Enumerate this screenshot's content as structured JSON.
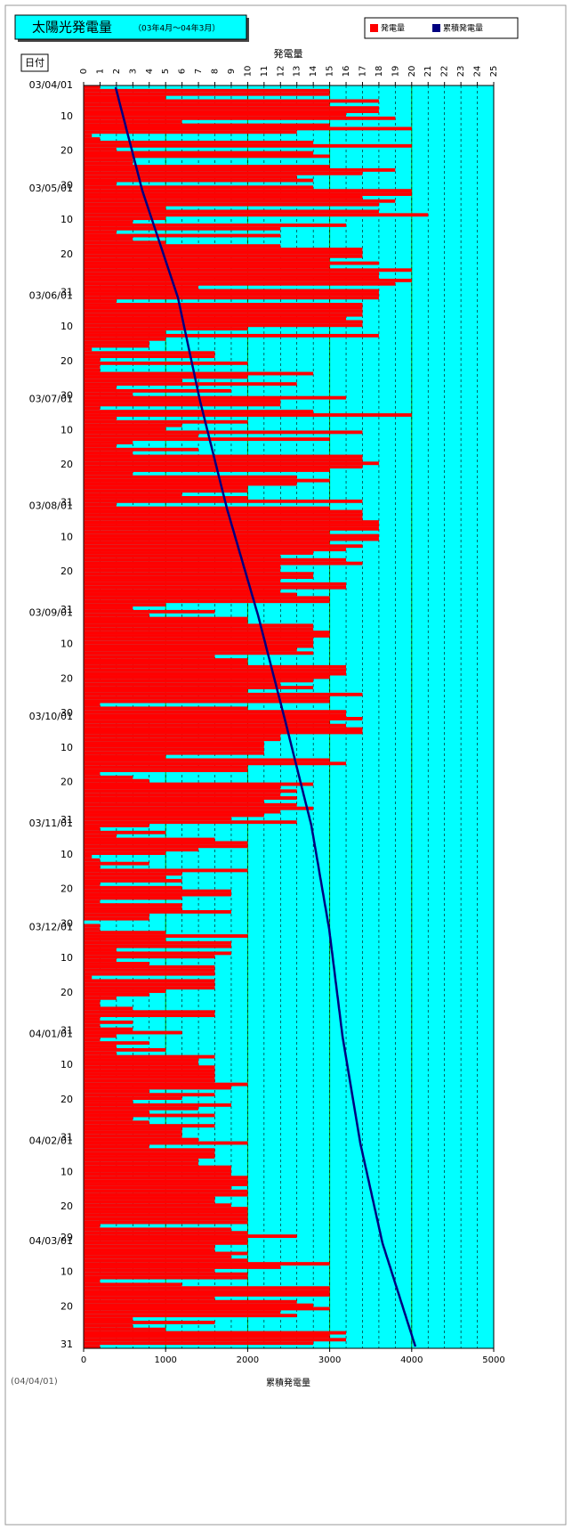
{
  "chart_data": {
    "type": "bar",
    "orientation": "horizontal",
    "title": "太陽光発電量",
    "subtitle": "（03年4月～04年3月）",
    "y_label": "日付",
    "x_label": "発電量",
    "x2_label": "累積発電量",
    "annotation": "(04/04/01)",
    "background": "#00ffff",
    "grid": true,
    "xlim": [
      0,
      25
    ],
    "xticks": [
      0,
      1,
      2,
      3,
      4,
      5,
      6,
      7,
      8,
      9,
      10,
      11,
      12,
      13,
      14,
      15,
      16,
      17,
      18,
      19,
      20,
      21,
      22,
      23,
      24,
      25
    ],
    "x2lim": [
      0,
      5000
    ],
    "x2ticks": [
      0,
      1000,
      2000,
      3000,
      4000,
      5000
    ],
    "categories": [
      "03/04/01",
      null,
      null,
      null,
      null,
      null,
      null,
      null,
      null,
      "10",
      null,
      null,
      null,
      null,
      null,
      null,
      null,
      null,
      null,
      "20",
      null,
      null,
      null,
      null,
      null,
      null,
      null,
      null,
      null,
      "30",
      "03/05/01",
      null,
      null,
      null,
      null,
      null,
      null,
      null,
      null,
      "10",
      null,
      null,
      null,
      null,
      null,
      null,
      null,
      null,
      null,
      "20",
      null,
      null,
      null,
      null,
      null,
      null,
      null,
      null,
      null,
      null,
      "31",
      "03/06/01",
      null,
      null,
      null,
      null,
      null,
      null,
      null,
      null,
      "10",
      null,
      null,
      null,
      null,
      null,
      null,
      null,
      null,
      null,
      "20",
      null,
      null,
      null,
      null,
      null,
      null,
      null,
      null,
      null,
      "30",
      "03/07/01",
      null,
      null,
      null,
      null,
      null,
      null,
      null,
      null,
      "10",
      null,
      null,
      null,
      null,
      null,
      null,
      null,
      null,
      null,
      "20",
      null,
      null,
      null,
      null,
      null,
      null,
      null,
      null,
      null,
      null,
      "31",
      "03/08/01",
      null,
      null,
      null,
      null,
      null,
      null,
      null,
      null,
      "10",
      null,
      null,
      null,
      null,
      null,
      null,
      null,
      null,
      null,
      "20",
      null,
      null,
      null,
      null,
      null,
      null,
      null,
      null,
      null,
      null,
      "31",
      "03/09/01",
      null,
      null,
      null,
      null,
      null,
      null,
      null,
      null,
      "10",
      null,
      null,
      null,
      null,
      null,
      null,
      null,
      null,
      null,
      "20",
      null,
      null,
      null,
      null,
      null,
      null,
      null,
      null,
      null,
      "30",
      "03/10/01",
      null,
      null,
      null,
      null,
      null,
      null,
      null,
      null,
      "10",
      null,
      null,
      null,
      null,
      null,
      null,
      null,
      null,
      null,
      "20",
      null,
      null,
      null,
      null,
      null,
      null,
      null,
      null,
      null,
      null,
      "31",
      "03/11/01",
      null,
      null,
      null,
      null,
      null,
      null,
      null,
      null,
      "10",
      null,
      null,
      null,
      null,
      null,
      null,
      null,
      null,
      null,
      "20",
      null,
      null,
      null,
      null,
      null,
      null,
      null,
      null,
      null,
      "30",
      "03/12/01",
      null,
      null,
      null,
      null,
      null,
      null,
      null,
      null,
      "10",
      null,
      null,
      null,
      null,
      null,
      null,
      null,
      null,
      null,
      "20",
      null,
      null,
      null,
      null,
      null,
      null,
      null,
      null,
      null,
      null,
      "31",
      "04/01/01",
      null,
      null,
      null,
      null,
      null,
      null,
      null,
      null,
      "10",
      null,
      null,
      null,
      null,
      null,
      null,
      null,
      null,
      null,
      "20",
      null,
      null,
      null,
      null,
      null,
      null,
      null,
      null,
      null,
      null,
      "31",
      "04/02/01",
      null,
      null,
      null,
      null,
      null,
      null,
      null,
      null,
      "10",
      null,
      null,
      null,
      null,
      null,
      null,
      null,
      null,
      null,
      "20",
      null,
      null,
      null,
      null,
      null,
      null,
      null,
      null,
      "29",
      "04/03/01",
      null,
      null,
      null,
      null,
      null,
      null,
      null,
      null,
      "10",
      null,
      null,
      null,
      null,
      null,
      null,
      null,
      null,
      null,
      "20",
      null,
      null,
      null,
      null,
      null,
      null,
      null,
      null,
      null,
      null,
      "31"
    ],
    "series": [
      {
        "name": "発電量",
        "color": "#ff0000",
        "values": [
          1,
          15,
          15,
          5,
          18,
          15,
          18,
          18,
          16,
          19,
          6,
          15,
          20,
          13,
          0.5,
          1,
          14,
          20,
          2,
          14,
          15,
          3,
          3,
          15,
          19,
          17,
          13,
          14,
          2,
          14,
          20,
          20,
          17,
          19,
          18,
          5,
          18,
          21,
          5,
          3,
          16,
          12,
          2,
          12,
          3,
          5,
          12,
          17,
          17,
          17,
          15,
          18,
          15,
          20,
          18,
          18,
          20,
          19,
          7,
          18,
          18,
          18,
          2,
          17,
          17,
          17,
          17,
          16,
          17,
          17,
          10,
          5,
          18,
          5,
          4,
          4,
          0.5,
          8,
          8,
          1,
          10,
          1,
          1,
          14,
          10,
          6,
          13,
          2,
          9,
          3,
          16,
          12,
          12,
          1,
          14,
          20,
          2,
          10,
          6,
          5,
          17,
          7,
          15,
          3,
          2,
          7,
          3,
          17,
          17,
          18,
          17,
          15,
          3,
          13,
          15,
          13,
          10,
          10,
          6,
          10,
          17,
          2,
          15,
          17,
          17,
          17,
          18,
          18,
          18,
          15,
          18,
          18,
          15,
          17,
          16,
          14,
          12,
          16,
          17,
          12,
          12,
          14,
          14,
          12,
          16,
          16,
          12,
          13,
          15,
          15,
          5,
          3,
          8,
          4,
          10,
          10,
          14,
          14,
          15,
          15,
          14,
          14,
          14,
          13,
          14,
          8,
          10,
          10,
          16,
          16,
          16,
          15,
          14,
          12,
          14,
          10,
          17,
          15,
          15,
          1,
          10,
          16,
          16,
          17,
          15,
          16,
          17,
          17,
          12,
          12,
          11,
          11,
          11,
          11,
          5,
          15,
          16,
          10,
          10,
          1,
          3,
          4,
          14,
          12,
          13,
          12,
          13,
          11,
          13,
          14,
          12,
          11,
          9,
          13,
          4,
          1,
          5,
          2,
          8,
          10,
          10,
          7,
          5,
          0.5,
          1,
          4,
          1,
          10,
          6,
          5,
          6,
          1,
          6,
          9,
          9,
          6,
          1,
          6,
          6,
          9,
          4,
          4,
          0,
          1,
          1,
          5,
          10,
          5,
          9,
          9,
          2,
          9,
          8,
          2,
          4,
          8,
          8,
          8,
          0.5,
          8,
          8,
          8,
          5,
          4,
          2,
          1,
          1,
          3,
          8,
          8,
          1,
          3,
          1,
          3,
          6,
          2,
          1,
          4,
          2,
          5,
          2,
          8,
          7,
          7,
          8,
          8,
          8,
          8,
          8,
          10,
          9,
          4,
          8,
          6,
          3,
          9,
          7,
          4,
          8,
          3,
          4,
          8,
          6,
          6,
          6,
          7,
          10,
          4,
          8,
          8,
          8,
          7,
          7,
          9,
          9,
          9,
          10,
          10,
          10,
          9,
          10,
          10,
          8,
          8,
          9,
          10,
          10,
          10,
          10,
          10,
          1,
          9,
          10,
          13,
          10,
          10,
          8,
          8,
          10,
          9,
          10,
          15,
          12,
          8,
          10,
          10,
          1,
          6,
          15,
          15,
          15,
          8,
          13,
          14,
          15,
          12,
          13,
          3,
          8,
          3,
          5,
          16,
          15,
          16,
          14,
          1
        ]
      },
      {
        "name": "累積発電量",
        "color": "#000080",
        "type": "line",
        "axis": "x2",
        "values": [
          390,
          401,
          412,
          423,
          433,
          444,
          455,
          466,
          477,
          488,
          499,
          510,
          520,
          531,
          542,
          553,
          564,
          575,
          586,
          597,
          607,
          618,
          629,
          640,
          651,
          662,
          673,
          684,
          694,
          705,
          716,
          730,
          744,
          758,
          772,
          786,
          800,
          814,
          828,
          842,
          856,
          870,
          884,
          898,
          912,
          926,
          940,
          954,
          968,
          982,
          996,
          1010,
          1024,
          1038,
          1052,
          1066,
          1080,
          1094,
          1108,
          1122,
          1136,
          1150,
          1159,
          1168,
          1177,
          1186,
          1195,
          1204,
          1213,
          1222,
          1231,
          1240,
          1249,
          1258,
          1267,
          1276,
          1285,
          1294,
          1303,
          1312,
          1321,
          1330,
          1339,
          1348,
          1357,
          1366,
          1375,
          1384,
          1393,
          1402,
          1411,
          1420,
          1431,
          1441,
          1452,
          1462,
          1473,
          1483,
          1494,
          1504,
          1515,
          1525,
          1536,
          1546,
          1557,
          1567,
          1578,
          1588,
          1599,
          1609,
          1620,
          1630,
          1641,
          1651,
          1662,
          1672,
          1683,
          1694,
          1704,
          1715,
          1725,
          1736,
          1746,
          1758,
          1771,
          1783,
          1795,
          1807,
          1820,
          1832,
          1844,
          1856,
          1869,
          1881,
          1893,
          1905,
          1918,
          1930,
          1942,
          1954,
          1967,
          1979,
          1991,
          2003,
          2016,
          2028,
          2040,
          2052,
          2065,
          2077,
          2089,
          2101,
          2114,
          2126,
          2137,
          2148,
          2158,
          2169,
          2180,
          2191,
          2202,
          2213,
          2223,
          2234,
          2245,
          2256,
          2267,
          2278,
          2288,
          2299,
          2310,
          2321,
          2332,
          2343,
          2353,
          2364,
          2375,
          2386,
          2397,
          2408,
          2418,
          2429,
          2440,
          2451,
          2462,
          2472,
          2483,
          2493,
          2504,
          2514,
          2525,
          2535,
          2546,
          2556,
          2567,
          2577,
          2588,
          2598,
          2609,
          2619,
          2630,
          2640,
          2651,
          2661,
          2672,
          2682,
          2693,
          2703,
          2714,
          2725,
          2735,
          2746,
          2756,
          2767,
          2777,
          2784,
          2791,
          2799,
          2806,
          2813,
          2820,
          2828,
          2835,
          2842,
          2849,
          2857,
          2864,
          2871,
          2878,
          2885,
          2893,
          2900,
          2907,
          2914,
          2922,
          2929,
          2936,
          2943,
          2951,
          2958,
          2965,
          2972,
          2979,
          2987,
          2994,
          2999,
          3004,
          3010,
          3015,
          3020,
          3025,
          3031,
          3036,
          3041,
          3046,
          3052,
          3057,
          3062,
          3067,
          3072,
          3078,
          3083,
          3088,
          3093,
          3099,
          3104,
          3109,
          3114,
          3120,
          3125,
          3130,
          3135,
          3140,
          3146,
          3151,
          3156,
          3163,
          3170,
          3177,
          3184,
          3191,
          3198,
          3205,
          3212,
          3219,
          3226,
          3233,
          3240,
          3247,
          3254,
          3261,
          3268,
          3275,
          3282,
          3289,
          3296,
          3303,
          3310,
          3317,
          3324,
          3331,
          3338,
          3345,
          3352,
          3359,
          3366,
          3373,
          3382,
          3392,
          3401,
          3410,
          3420,
          3429,
          3438,
          3448,
          3457,
          3466,
          3476,
          3485,
          3494,
          3504,
          3513,
          3522,
          3532,
          3541,
          3550,
          3560,
          3569,
          3578,
          3588,
          3597,
          3606,
          3616,
          3625,
          3634,
          3644,
          3657,
          3671,
          3684,
          3697,
          3711,
          3724,
          3738,
          3751,
          3764,
          3778,
          3791,
          3804,
          3818,
          3831,
          3845,
          3858,
          3871,
          3885,
          3898,
          3911,
          3925,
          3938,
          3951,
          3965,
          3978,
          3992,
          4005,
          4018,
          4032,
          4045
        ]
      }
    ]
  }
}
